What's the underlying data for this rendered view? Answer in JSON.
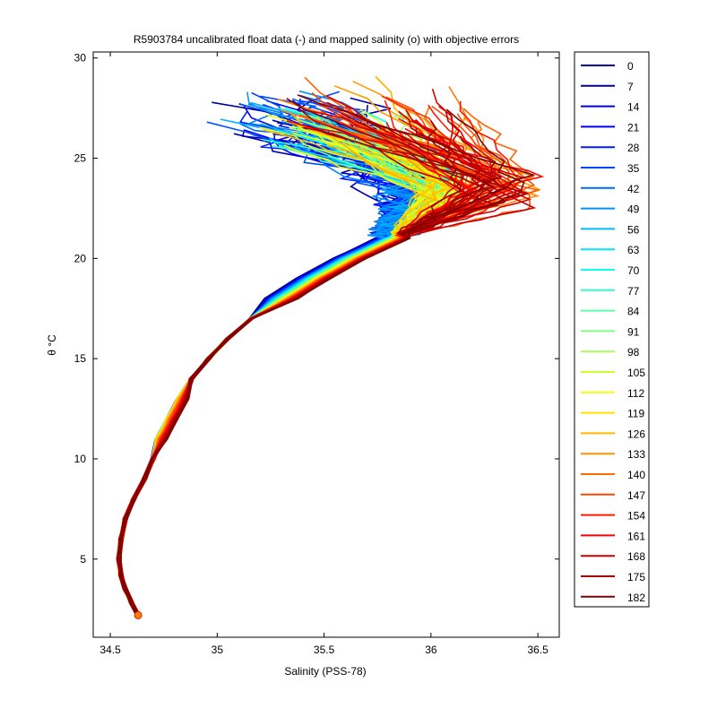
{
  "chart_data": {
    "type": "line",
    "title": "R5903784 uncalibrated float data (-) and mapped salinity (o) with objective errors",
    "xlabel": "Salinity (PSS-78)",
    "ylabel": "θ °C",
    "xlim": [
      34.42,
      36.6
    ],
    "ylim": [
      1.1,
      30.3
    ],
    "x_ticks": [
      "34.5",
      "35",
      "35.5",
      "36",
      "36.5"
    ],
    "y_ticks": [
      "5",
      "10",
      "15",
      "20",
      "25",
      "30"
    ],
    "grid": false,
    "legend_position": "outside-right",
    "legend": [
      "0",
      "7",
      "14",
      "21",
      "28",
      "35",
      "42",
      "49",
      "56",
      "63",
      "70",
      "77",
      "84",
      "91",
      "98",
      "105",
      "112",
      "119",
      "126",
      "133",
      "140",
      "147",
      "154",
      "161",
      "168",
      "175",
      "182"
    ],
    "colormap": "jet",
    "profile_count": 186,
    "legend_colors": [
      "#00008f",
      "#0000b0",
      "#0000d0",
      "#0000f0",
      "#0010ff",
      "#0030ff",
      "#0050ff",
      "#0070ff",
      "#0090ff",
      "#00b0ff",
      "#00d0ff",
      "#00f0ff",
      "#20ffdf",
      "#40ffbf",
      "#60ff9f",
      "#80ff80",
      "#9fff60",
      "#bfff40",
      "#dfff20",
      "#ffff00",
      "#ffdf00",
      "#ffbf00",
      "#ff9f00",
      "#ff8000",
      "#ff6000",
      "#ff4000",
      "#ff2000",
      "#ff0000",
      "#df0000",
      "#bf0000",
      "#9f0000",
      "#800000"
    ],
    "series_template": {
      "deep_part": [
        [
          34.63,
          2.2
        ],
        [
          34.6,
          2.8
        ],
        [
          34.57,
          3.5
        ],
        [
          34.55,
          4.2
        ],
        [
          34.54,
          5.0
        ],
        [
          34.55,
          6.0
        ],
        [
          34.57,
          7.0
        ],
        [
          34.61,
          8.0
        ],
        [
          34.66,
          9.0
        ],
        [
          34.7,
          10.0
        ],
        [
          34.72,
          11.0
        ],
        [
          34.77,
          12.0
        ],
        [
          34.82,
          13.0
        ],
        [
          34.88,
          14.0
        ],
        [
          34.96,
          15.0
        ],
        [
          35.05,
          16.0
        ],
        [
          35.16,
          17.0
        ],
        [
          35.3,
          18.0
        ],
        [
          35.45,
          19.0
        ],
        [
          35.62,
          20.0
        ],
        [
          35.82,
          21.0
        ]
      ],
      "surface_envelope": {
        "early": {
          "salinity_range": [
            35.0,
            35.9
          ],
          "theta_range": [
            21.5,
            28.4
          ]
        },
        "mid": {
          "salinity_range": [
            35.5,
            36.15
          ],
          "theta_range": [
            21.5,
            27.6
          ]
        },
        "late": {
          "salinity_range": [
            35.6,
            36.5
          ],
          "theta_range": [
            21.5,
            29.1
          ]
        }
      }
    },
    "mapped_points": [
      [
        34.63,
        2.2
      ]
    ]
  }
}
